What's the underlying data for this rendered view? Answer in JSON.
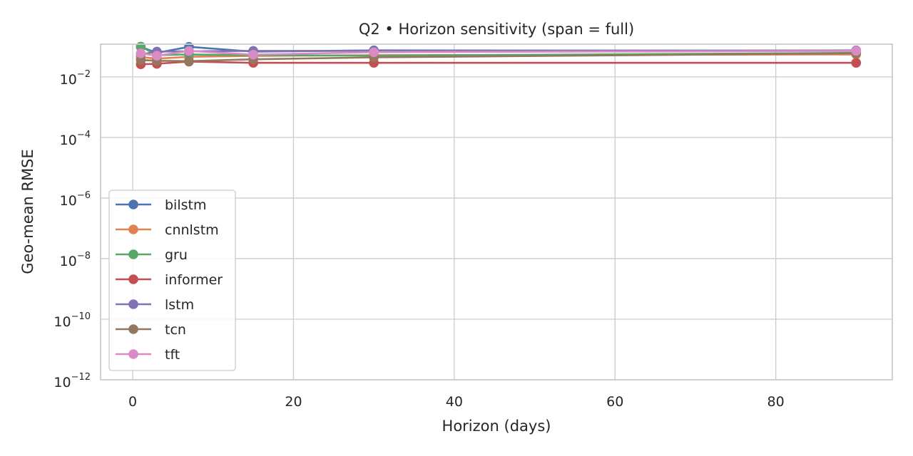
{
  "chart_data": {
    "type": "line",
    "title": "Q2 • Horizon sensitivity (span = full)",
    "xlabel": "Horizon (days)",
    "ylabel": "Geo-mean RMSE",
    "xlim": [
      -4,
      94.5
    ],
    "ylim": [
      1e-12,
      0.12
    ],
    "yscale": "log",
    "grid": true,
    "legend_position": "lower-left",
    "x_ticks": [
      {
        "value": 0,
        "label": "0"
      },
      {
        "value": 20,
        "label": "20"
      },
      {
        "value": 40,
        "label": "40"
      },
      {
        "value": 60,
        "label": "60"
      },
      {
        "value": 80,
        "label": "80"
      }
    ],
    "y_ticks": [
      {
        "value": 0.01,
        "base": "10",
        "exp": "−2"
      },
      {
        "value": 0.0001,
        "base": "10",
        "exp": "−4"
      },
      {
        "value": 1e-06,
        "base": "10",
        "exp": "−6"
      },
      {
        "value": 1e-08,
        "base": "10",
        "exp": "−8"
      },
      {
        "value": 1e-10,
        "base": "10",
        "exp": "−10"
      },
      {
        "value": 1e-12,
        "base": "10",
        "exp": "−12"
      }
    ],
    "x": [
      1,
      3,
      7,
      15,
      30,
      90
    ],
    "series": [
      {
        "name": "bilstm",
        "color": "#4c72b0",
        "values": [
          0.098,
          0.062,
          0.098,
          0.068,
          0.075,
          0.072
        ]
      },
      {
        "name": "cnnlstm",
        "color": "#dd8452",
        "values": [
          0.045,
          0.04,
          0.046,
          0.049,
          0.052,
          0.055
        ]
      },
      {
        "name": "gru",
        "color": "#55a868",
        "values": [
          0.1,
          0.052,
          0.055,
          0.052,
          0.05,
          0.062
        ]
      },
      {
        "name": "informer",
        "color": "#c44e52",
        "values": [
          0.026,
          0.027,
          0.032,
          0.029,
          0.029,
          0.029
        ]
      },
      {
        "name": "lstm",
        "color": "#8172b3",
        "values": [
          0.055,
          0.068,
          0.07,
          0.072,
          0.072,
          0.075
        ]
      },
      {
        "name": "tcn",
        "color": "#937860",
        "values": [
          0.036,
          0.034,
          0.033,
          0.038,
          0.044,
          0.06
        ]
      },
      {
        "name": "tft",
        "color": "#da8bc3",
        "values": [
          0.06,
          0.05,
          0.072,
          0.054,
          0.065,
          0.072
        ]
      }
    ]
  }
}
